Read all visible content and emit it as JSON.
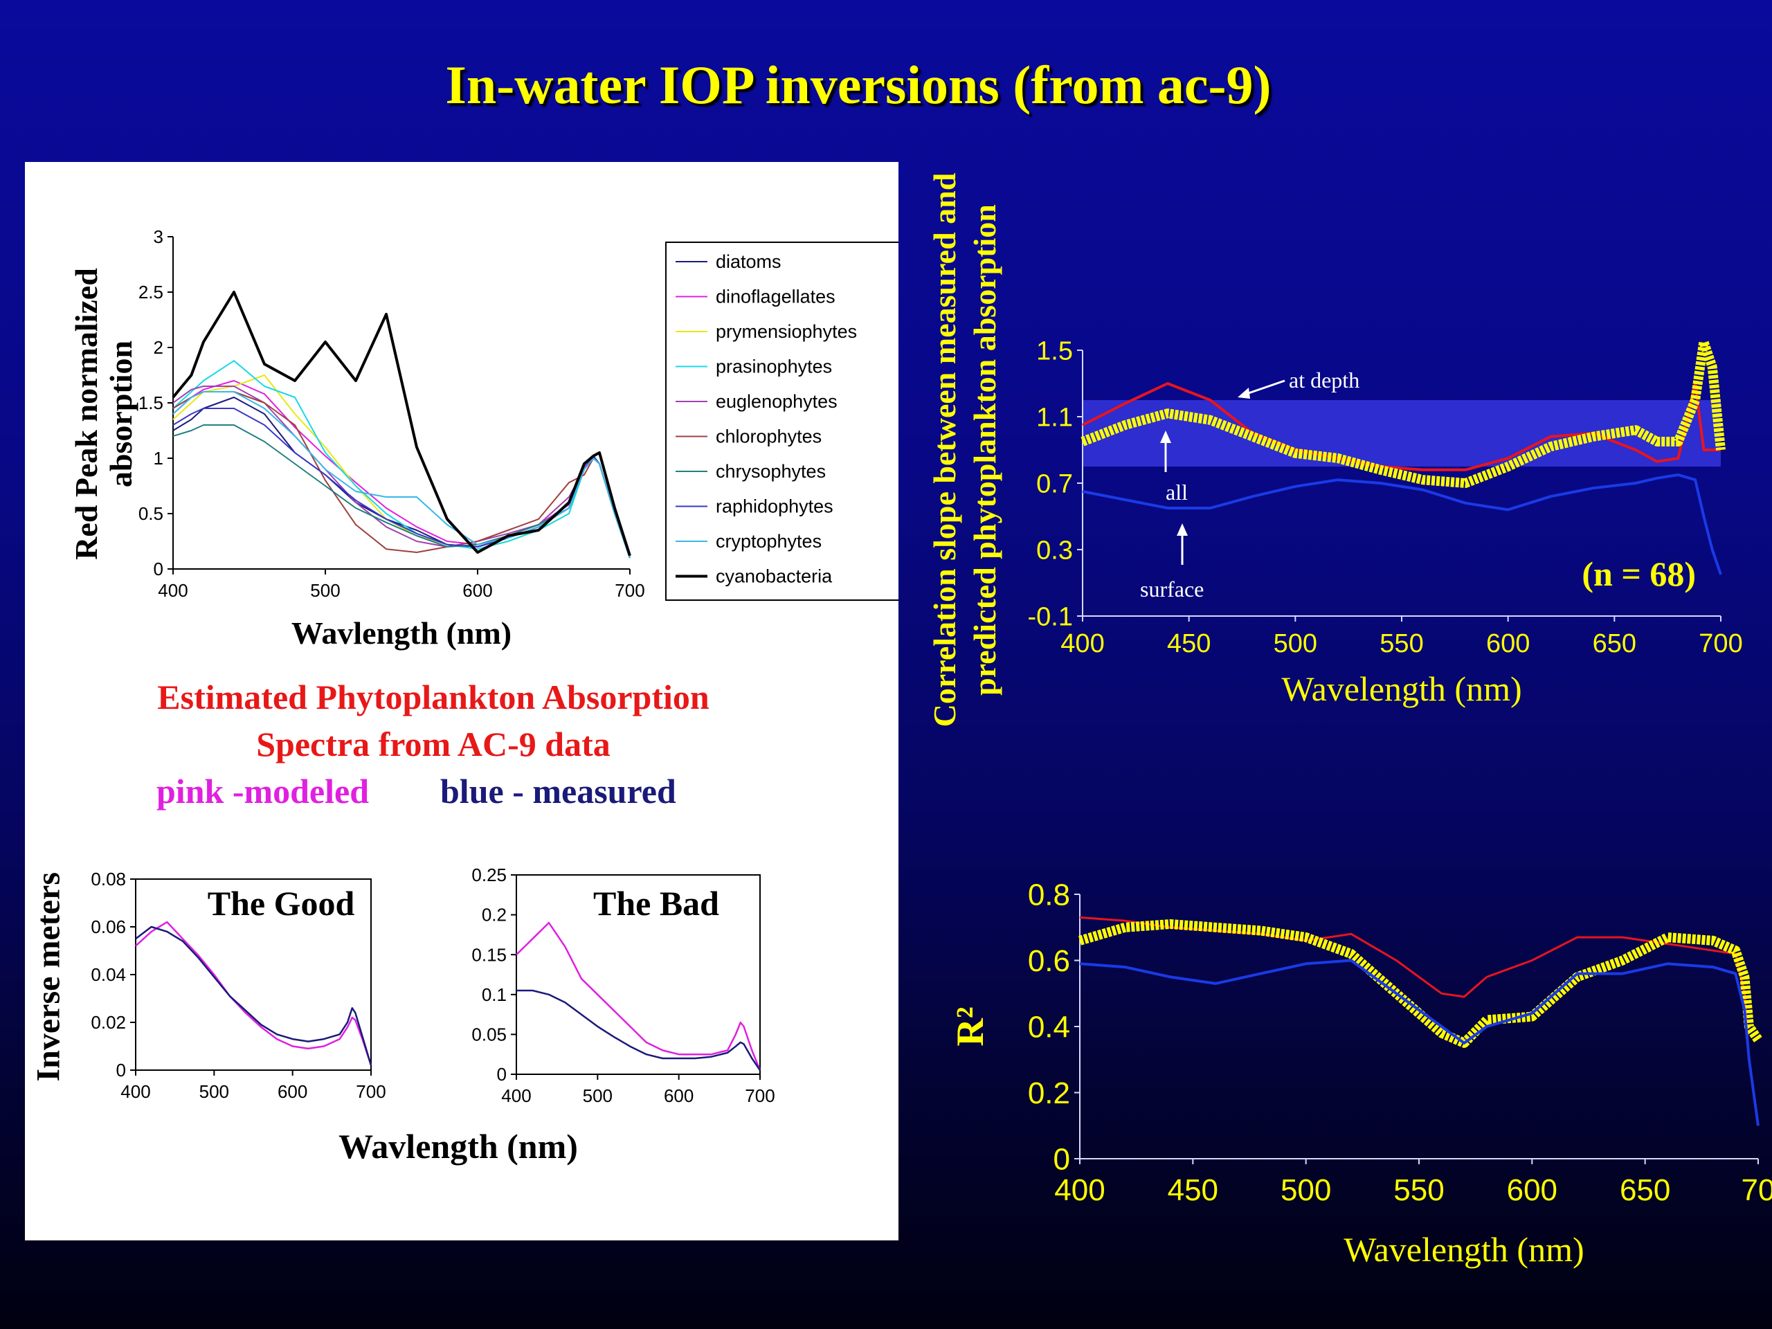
{
  "slide": {
    "title": "In-water IOP inversions (from ac-9)",
    "caption_line1": "Estimated Phytoplankton Absorption",
    "caption_line2": "Spectra from AC-9 data",
    "legend_pink": "pink -modeled",
    "legend_blue": "blue - measured",
    "bottom_xlabel": "Wavlength (nm)",
    "bottom_ylabel": "Inverse meters"
  },
  "colors": {
    "background": "#0a0a9c",
    "title": "#ffff00",
    "caption_red": "#e81818",
    "modeled_pink": "#e020e0",
    "measured_blue": "#1a1a7a",
    "highlight_yellow": "#ffff00",
    "line_red": "#e8141e",
    "line_blue": "#1a3ae6"
  },
  "chart_data": [
    {
      "id": "red-peak",
      "type": "line",
      "title": "",
      "xlabel": "Wavlength (nm)",
      "ylabel": "Red Peak normalized absorption",
      "xlim": [
        400,
        700
      ],
      "ylim": [
        0,
        3
      ],
      "x_ticks": [
        "400",
        "500",
        "600",
        "700"
      ],
      "y_ticks": [
        "0",
        "0.5",
        "1",
        "1.5",
        "2",
        "2.5",
        "3"
      ],
      "x": [
        400,
        412,
        420,
        440,
        460,
        480,
        500,
        520,
        540,
        560,
        580,
        600,
        620,
        640,
        660,
        670,
        676,
        680,
        690,
        700
      ],
      "legend_position": "right",
      "series": [
        {
          "name": "diatoms",
          "color": "#1a1a80",
          "values": [
            1.25,
            1.35,
            1.45,
            1.55,
            1.4,
            1.05,
            0.85,
            0.6,
            0.45,
            0.35,
            0.22,
            0.2,
            0.28,
            0.38,
            0.55,
            0.9,
            1.02,
            0.95,
            0.5,
            0.1
          ]
        },
        {
          "name": "dinoflagellates",
          "color": "#e020e0",
          "values": [
            1.4,
            1.55,
            1.62,
            1.7,
            1.58,
            1.28,
            1.02,
            0.78,
            0.55,
            0.38,
            0.25,
            0.22,
            0.3,
            0.4,
            0.58,
            0.92,
            1.02,
            0.95,
            0.5,
            0.1
          ]
        },
        {
          "name": "prymensiophytes",
          "color": "#e8e818",
          "values": [
            1.35,
            1.5,
            1.6,
            1.65,
            1.75,
            1.4,
            1.1,
            0.75,
            0.45,
            0.3,
            0.22,
            0.18,
            0.25,
            0.35,
            0.5,
            0.9,
            1.0,
            0.95,
            0.5,
            0.1
          ]
        },
        {
          "name": "prasinophytes",
          "color": "#18d8e8",
          "values": [
            1.45,
            1.6,
            1.7,
            1.88,
            1.65,
            1.55,
            1.05,
            0.75,
            0.5,
            0.32,
            0.22,
            0.18,
            0.25,
            0.35,
            0.5,
            0.9,
            1.0,
            0.95,
            0.5,
            0.1
          ]
        },
        {
          "name": "euglenophytes",
          "color": "#a040b0",
          "values": [
            1.5,
            1.62,
            1.65,
            1.65,
            1.5,
            1.2,
            0.9,
            0.6,
            0.38,
            0.25,
            0.2,
            0.25,
            0.32,
            0.4,
            0.65,
            0.9,
            1.0,
            0.95,
            0.5,
            0.1
          ]
        },
        {
          "name": "chlorophytes",
          "color": "#a04040",
          "values": [
            1.45,
            1.55,
            1.6,
            1.6,
            1.5,
            1.3,
            0.8,
            0.4,
            0.18,
            0.15,
            0.2,
            0.25,
            0.35,
            0.45,
            0.78,
            0.85,
            1.0,
            0.95,
            0.5,
            0.1
          ]
        },
        {
          "name": "chrysophytes",
          "color": "#208080",
          "values": [
            1.2,
            1.25,
            1.3,
            1.3,
            1.15,
            0.95,
            0.75,
            0.55,
            0.42,
            0.3,
            0.2,
            0.22,
            0.3,
            0.4,
            0.55,
            0.9,
            1.02,
            0.95,
            0.5,
            0.1
          ]
        },
        {
          "name": "raphidophytes",
          "color": "#3838c8",
          "values": [
            1.3,
            1.4,
            1.45,
            1.45,
            1.3,
            1.05,
            0.85,
            0.62,
            0.45,
            0.32,
            0.22,
            0.2,
            0.28,
            0.38,
            0.55,
            0.9,
            1.02,
            0.95,
            0.5,
            0.1
          ]
        },
        {
          "name": "cryptophytes",
          "color": "#38b8e8",
          "values": [
            1.4,
            1.55,
            1.6,
            1.6,
            1.45,
            1.2,
            0.9,
            0.7,
            0.65,
            0.65,
            0.4,
            0.22,
            0.28,
            0.38,
            0.55,
            0.9,
            1.0,
            0.95,
            0.5,
            0.1
          ]
        },
        {
          "name": "cyanobacteria",
          "color": "#000000",
          "values": [
            1.55,
            1.75,
            2.05,
            2.5,
            1.85,
            1.7,
            2.05,
            1.7,
            2.3,
            1.1,
            0.45,
            0.15,
            0.3,
            0.35,
            0.6,
            0.95,
            1.02,
            1.05,
            0.55,
            0.12
          ]
        }
      ]
    },
    {
      "id": "the-good",
      "type": "line",
      "title": "The Good",
      "xlim": [
        400,
        700
      ],
      "ylim": [
        0,
        0.08
      ],
      "x_ticks": [
        "400",
        "500",
        "600",
        "700"
      ],
      "y_ticks": [
        "0",
        "0.02",
        "0.04",
        "0.06",
        "0.08"
      ],
      "x": [
        400,
        420,
        440,
        460,
        480,
        500,
        520,
        540,
        560,
        580,
        600,
        620,
        640,
        660,
        670,
        676,
        680,
        690,
        700
      ],
      "series": [
        {
          "name": "modeled",
          "color": "#e020e0",
          "values": [
            0.052,
            0.058,
            0.062,
            0.055,
            0.048,
            0.04,
            0.031,
            0.024,
            0.018,
            0.013,
            0.01,
            0.009,
            0.01,
            0.013,
            0.018,
            0.022,
            0.021,
            0.012,
            0.002
          ]
        },
        {
          "name": "measured",
          "color": "#1a1a7a",
          "values": [
            0.055,
            0.06,
            0.058,
            0.054,
            0.047,
            0.039,
            0.031,
            0.025,
            0.019,
            0.015,
            0.013,
            0.012,
            0.013,
            0.015,
            0.02,
            0.026,
            0.024,
            0.013,
            0.002
          ]
        }
      ]
    },
    {
      "id": "the-bad",
      "type": "line",
      "title": "The Bad",
      "xlim": [
        400,
        700
      ],
      "ylim": [
        0,
        0.25
      ],
      "x_ticks": [
        "400",
        "500",
        "600",
        "700"
      ],
      "y_ticks": [
        "0",
        "0.05",
        "0.1",
        "0.15",
        "0.2",
        "0.25"
      ],
      "x": [
        400,
        420,
        440,
        460,
        480,
        500,
        520,
        540,
        560,
        580,
        600,
        620,
        640,
        660,
        670,
        676,
        680,
        690,
        700
      ],
      "series": [
        {
          "name": "modeled",
          "color": "#e020e0",
          "values": [
            0.15,
            0.17,
            0.19,
            0.16,
            0.12,
            0.1,
            0.08,
            0.06,
            0.04,
            0.03,
            0.025,
            0.025,
            0.025,
            0.03,
            0.05,
            0.065,
            0.06,
            0.03,
            0.005
          ]
        },
        {
          "name": "measured",
          "color": "#1a1a7a",
          "values": [
            0.105,
            0.105,
            0.1,
            0.09,
            0.075,
            0.06,
            0.047,
            0.035,
            0.025,
            0.02,
            0.02,
            0.02,
            0.022,
            0.027,
            0.035,
            0.04,
            0.038,
            0.02,
            0.005
          ]
        }
      ]
    },
    {
      "id": "correlation-slope",
      "type": "line",
      "title": "",
      "xlabel": "Wavelength (nm)",
      "ylabel_line1": "Correlation slope between measured and",
      "ylabel_line2": "predicted phytoplankton absorption",
      "xlim": [
        400,
        700
      ],
      "ylim": [
        -0.1,
        1.5
      ],
      "x_ticks": [
        "400",
        "450",
        "500",
        "550",
        "600",
        "650",
        "700"
      ],
      "y_ticks": [
        "-0.1",
        "0.3",
        "0.7",
        "1.1",
        "1.5"
      ],
      "band": [
        0.8,
        1.2
      ],
      "annotations": [
        "at depth",
        "all",
        "surface"
      ],
      "n_label": "(n = 68)",
      "x": [
        400,
        420,
        440,
        460,
        480,
        500,
        520,
        540,
        560,
        580,
        600,
        620,
        640,
        660,
        670,
        680,
        688,
        692,
        696,
        700
      ],
      "series": [
        {
          "name": "at depth",
          "color": "#e8141e",
          "values": [
            1.05,
            1.18,
            1.3,
            1.2,
            1.0,
            0.9,
            0.85,
            0.8,
            0.78,
            0.78,
            0.85,
            0.98,
            1.0,
            0.9,
            0.83,
            0.85,
            1.3,
            0.9,
            0.9,
            0.9
          ]
        },
        {
          "name": "all",
          "color": "#ffff00",
          "values": [
            0.95,
            1.05,
            1.12,
            1.08,
            0.98,
            0.88,
            0.85,
            0.78,
            0.72,
            0.7,
            0.8,
            0.92,
            0.98,
            1.02,
            0.95,
            0.95,
            1.2,
            1.55,
            1.4,
            0.9
          ]
        },
        {
          "name": "surface",
          "color": "#1a3ae6",
          "values": [
            0.65,
            0.6,
            0.55,
            0.55,
            0.62,
            0.68,
            0.72,
            0.7,
            0.66,
            0.58,
            0.54,
            0.62,
            0.67,
            0.7,
            0.73,
            0.75,
            0.72,
            0.5,
            0.3,
            0.15
          ]
        }
      ]
    },
    {
      "id": "r-squared",
      "type": "line",
      "title": "",
      "xlabel": "Wavelength (nm)",
      "ylabel": "R²",
      "xlim": [
        400,
        700
      ],
      "ylim": [
        0,
        0.8
      ],
      "x_ticks": [
        "400",
        "450",
        "500",
        "550",
        "600",
        "650",
        "70"
      ],
      "y_ticks": [
        "0",
        "0.2",
        "0.4",
        "0.6",
        "0.8"
      ],
      "x": [
        400,
        420,
        440,
        460,
        480,
        500,
        520,
        540,
        560,
        570,
        580,
        600,
        620,
        640,
        660,
        680,
        690,
        694,
        696,
        700
      ],
      "series": [
        {
          "name": "red",
          "color": "#e8141e",
          "values": [
            0.73,
            0.72,
            0.7,
            0.69,
            0.68,
            0.66,
            0.68,
            0.6,
            0.5,
            0.49,
            0.55,
            0.6,
            0.67,
            0.67,
            0.65,
            0.63,
            0.62,
            0.5,
            0.3,
            0.1
          ]
        },
        {
          "name": "yellow",
          "color": "#ffff00",
          "values": [
            0.66,
            0.7,
            0.71,
            0.7,
            0.69,
            0.67,
            0.62,
            0.5,
            0.38,
            0.35,
            0.42,
            0.43,
            0.55,
            0.6,
            0.67,
            0.66,
            0.63,
            0.55,
            0.4,
            0.36
          ]
        },
        {
          "name": "blue",
          "color": "#1a3ae6",
          "values": [
            0.59,
            0.58,
            0.55,
            0.53,
            0.56,
            0.59,
            0.6,
            0.5,
            0.4,
            0.35,
            0.4,
            0.44,
            0.56,
            0.56,
            0.59,
            0.58,
            0.56,
            0.45,
            0.3,
            0.1
          ]
        }
      ]
    }
  ]
}
